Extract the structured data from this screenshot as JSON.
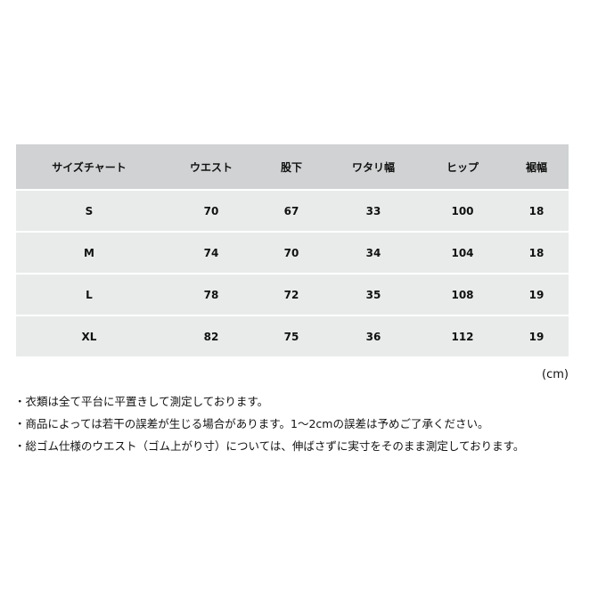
{
  "table": {
    "headers": [
      "サイズチャート",
      "ウエスト",
      "股下",
      "ワタリ幅",
      "ヒップ",
      "裾幅"
    ],
    "rows": [
      [
        "S",
        "70",
        "67",
        "33",
        "100",
        "18"
      ],
      [
        "M",
        "74",
        "70",
        "34",
        "104",
        "18"
      ],
      [
        "L",
        "78",
        "72",
        "35",
        "108",
        "19"
      ],
      [
        "XL",
        "82",
        "75",
        "36",
        "112",
        "19"
      ]
    ]
  },
  "unit": "(cm)",
  "notes": [
    "・衣類は全て平台に平置きして測定しております。",
    "・商品によっては若干の誤差が生じる場合があります。1～2cmの誤差は予めご了承ください。",
    "・総ゴム仕様のウエスト（ゴム上がり寸）については、伸ばさずに実寸をそのまま測定しております。"
  ]
}
